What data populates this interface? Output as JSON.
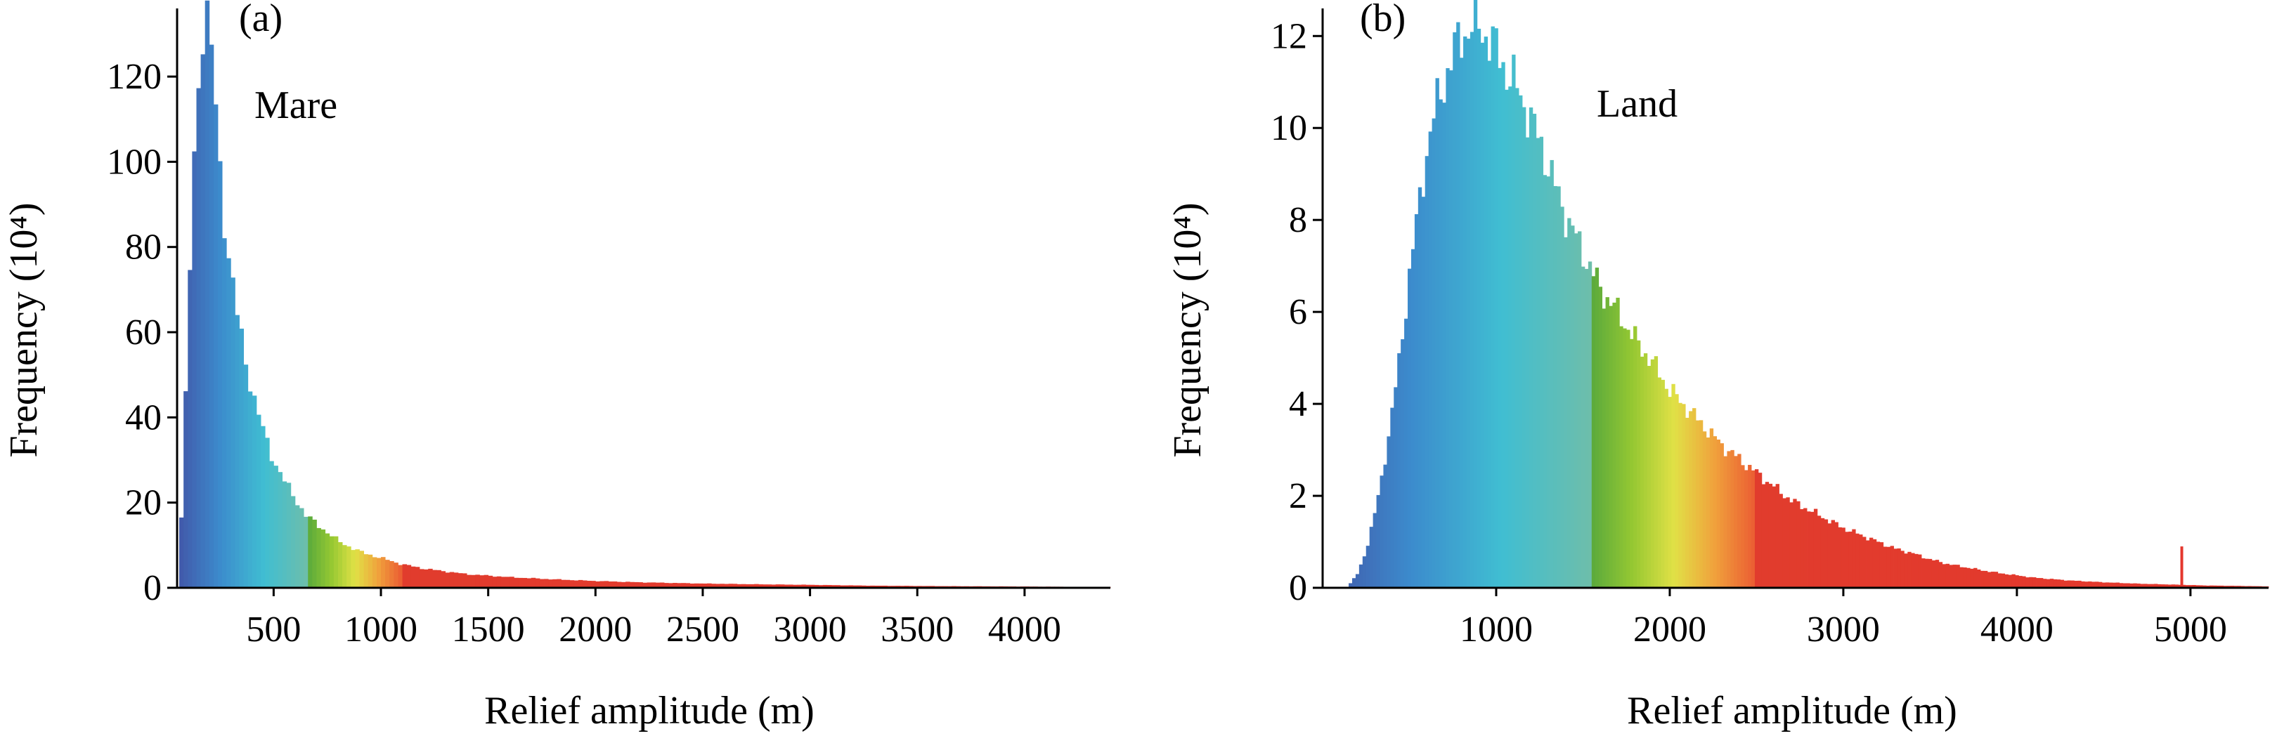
{
  "chart_data": [
    {
      "type": "bar",
      "panel_label": "(a)",
      "annotation": "Mare",
      "xlabel": "Relief amplitude (m)",
      "ylabel": "Frequency (10⁴)",
      "xlim": [
        50,
        4400
      ],
      "ylim": [
        0,
        136
      ],
      "xticks": [
        500,
        1000,
        1500,
        2000,
        2500,
        3000,
        3500,
        4000
      ],
      "yticks": [
        0,
        20,
        40,
        60,
        80,
        100,
        120
      ],
      "grid": false,
      "bin_width_m": 20,
      "color_bands": [
        {
          "from": 50,
          "to": 660,
          "palette": "blue-cyan-teal"
        },
        {
          "from": 660,
          "to": 1100,
          "palette": "green-yellow-orange"
        },
        {
          "from": 1100,
          "to": 4400,
          "palette": "red"
        }
      ],
      "envelope": {
        "x": [
          60,
          80,
          100,
          120,
          140,
          160,
          180,
          200,
          220,
          240,
          260,
          280,
          300,
          330,
          360,
          400,
          450,
          500,
          550,
          600,
          650,
          700,
          750,
          800,
          900,
          1000,
          1100,
          1200,
          1400,
          1600,
          1800,
          2000,
          2200,
          2500,
          2800,
          3000,
          3300,
          3600,
          4000,
          4400
        ],
        "y": [
          5,
          28,
          60,
          90,
          112,
          128,
          135,
          131,
          120,
          105,
          92,
          82,
          74,
          64,
          56,
          46,
          37,
          30,
          25,
          21,
          17,
          15,
          13,
          11,
          8.5,
          7,
          5.5,
          4.5,
          3.2,
          2.5,
          2.0,
          1.6,
          1.3,
          1.0,
          0.8,
          0.7,
          0.5,
          0.4,
          0.3,
          0.2
        ]
      }
    },
    {
      "type": "bar",
      "panel_label": "(b)",
      "annotation": "Land",
      "xlabel": "Relief amplitude (m)",
      "ylabel": "Frequency (10⁴)",
      "xlim": [
        0,
        5450
      ],
      "ylim": [
        0,
        12.6
      ],
      "xticks": [
        1000,
        2000,
        3000,
        4000,
        5000
      ],
      "yticks": [
        0,
        2,
        4,
        6,
        8,
        10,
        12
      ],
      "grid": false,
      "bin_width_m": 20,
      "color_bands": [
        {
          "from": 0,
          "to": 1550,
          "palette": "blue-cyan-teal"
        },
        {
          "from": 1550,
          "to": 2500,
          "palette": "green-yellow-orange"
        },
        {
          "from": 2500,
          "to": 5450,
          "palette": "red"
        }
      ],
      "spike": {
        "x": 4950,
        "y": 0.9
      },
      "envelope": {
        "x": [
          150,
          200,
          250,
          300,
          350,
          400,
          450,
          500,
          550,
          600,
          650,
          700,
          750,
          800,
          850,
          900,
          950,
          1000,
          1050,
          1100,
          1150,
          1200,
          1250,
          1300,
          1350,
          1400,
          1450,
          1500,
          1550,
          1600,
          1700,
          1800,
          1900,
          2000,
          2100,
          2200,
          2300,
          2400,
          2500,
          2600,
          2700,
          2800,
          2900,
          3000,
          3100,
          3200,
          3300,
          3400,
          3500,
          3600,
          3700,
          3800,
          3900,
          4000,
          4100,
          4200,
          4300,
          4500,
          4700,
          4900,
          5100,
          5300,
          5450
        ],
        "y": [
          0.05,
          0.3,
          0.8,
          1.6,
          2.6,
          3.8,
          5.2,
          6.8,
          8.2,
          9.5,
          10.4,
          11.0,
          11.6,
          12.0,
          12.2,
          12.2,
          12.0,
          11.7,
          11.3,
          11.0,
          10.6,
          10.2,
          9.7,
          9.2,
          8.6,
          8.1,
          7.7,
          7.3,
          6.9,
          6.5,
          6.0,
          5.4,
          4.9,
          4.3,
          3.9,
          3.5,
          3.1,
          2.8,
          2.5,
          2.2,
          1.9,
          1.7,
          1.5,
          1.3,
          1.15,
          1.0,
          0.85,
          0.75,
          0.62,
          0.52,
          0.45,
          0.38,
          0.32,
          0.27,
          0.22,
          0.19,
          0.16,
          0.12,
          0.09,
          0.07,
          0.05,
          0.04,
          0.03
        ]
      }
    }
  ]
}
